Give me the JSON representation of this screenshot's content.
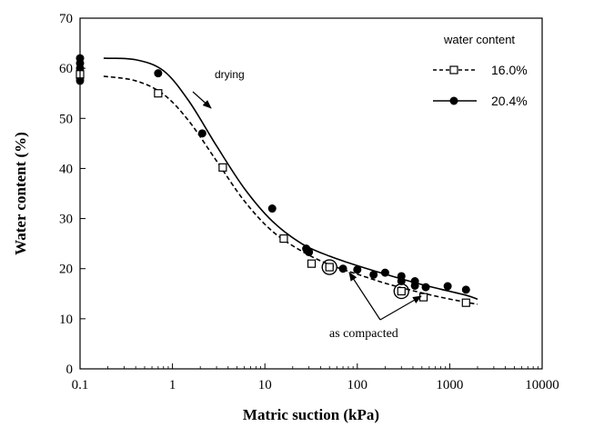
{
  "chart_data": {
    "type": "scatter",
    "xlabel": "Matric suction (kPa)",
    "ylabel": "Water content    (%)",
    "xscale": "log",
    "xlim": [
      0.1,
      10000
    ],
    "ylim": [
      0,
      70
    ],
    "xticks": [
      0.1,
      1,
      10,
      100,
      1000,
      10000
    ],
    "xtick_labels": [
      "0.1",
      "1",
      "10",
      "100",
      "1000",
      "10000"
    ],
    "yticks": [
      0,
      10,
      20,
      30,
      40,
      50,
      60,
      70
    ],
    "ytick_labels": [
      "0",
      "10",
      "20",
      "30",
      "40",
      "50",
      "60",
      "70"
    ],
    "grid": false,
    "legend": {
      "title": "water content",
      "placement": "top-right"
    },
    "series": [
      {
        "name": "16.0%",
        "marker": "open-square",
        "line": "dashed",
        "color": "#000000",
        "points": [
          [
            0.1,
            58.8
          ],
          [
            0.7,
            55
          ],
          [
            3.5,
            40.2
          ],
          [
            16,
            26
          ],
          [
            32,
            21
          ],
          [
            50,
            20.3
          ],
          [
            300,
            15.5
          ],
          [
            520,
            14.3
          ],
          [
            1500,
            13.2
          ]
        ],
        "curve": [
          [
            0.18,
            58.4
          ],
          [
            0.4,
            57.5
          ],
          [
            0.8,
            54.8
          ],
          [
            1.5,
            49.5
          ],
          [
            3,
            41.5
          ],
          [
            6,
            33.5
          ],
          [
            12,
            27.5
          ],
          [
            25,
            23.5
          ],
          [
            50,
            20.8
          ],
          [
            100,
            18.9
          ],
          [
            200,
            17.1
          ],
          [
            400,
            15.6
          ],
          [
            800,
            14.3
          ],
          [
            1500,
            13.3
          ],
          [
            2000,
            12.9
          ]
        ]
      },
      {
        "name": "20.4%",
        "marker": "filled-circle",
        "line": "solid",
        "color": "#000000",
        "points": [
          [
            0.1,
            62
          ],
          [
            0.1,
            61
          ],
          [
            0.1,
            60
          ],
          [
            0.1,
            58
          ],
          [
            0.1,
            57.5
          ],
          [
            0.7,
            59
          ],
          [
            2.1,
            47
          ],
          [
            12,
            32
          ],
          [
            28,
            24
          ],
          [
            30,
            23.3
          ],
          [
            50,
            20.3
          ],
          [
            70,
            20
          ],
          [
            100,
            19.8
          ],
          [
            150,
            18.8
          ],
          [
            200,
            19.2
          ],
          [
            300,
            18.5
          ],
          [
            300,
            17.5
          ],
          [
            420,
            17.5
          ],
          [
            420,
            16.6
          ],
          [
            550,
            16.3
          ],
          [
            950,
            16.5
          ],
          [
            1500,
            15.8
          ]
        ],
        "curve": [
          [
            0.18,
            62
          ],
          [
            0.4,
            61.7
          ],
          [
            0.8,
            59.5
          ],
          [
            1.5,
            53.5
          ],
          [
            3,
            44.5
          ],
          [
            6,
            36
          ],
          [
            12,
            29.5
          ],
          [
            25,
            25
          ],
          [
            50,
            22.5
          ],
          [
            100,
            20.6
          ],
          [
            200,
            18.9
          ],
          [
            400,
            17.3
          ],
          [
            800,
            15.9
          ],
          [
            1500,
            14.7
          ],
          [
            2000,
            13.9
          ]
        ]
      }
    ],
    "annotations": [
      {
        "text": "drying",
        "x": 2.2,
        "y": 66,
        "arrow_to": [
          2.6,
          59
        ]
      },
      {
        "text": "as compacted",
        "x": 100,
        "y": 6.5,
        "arrows_to": [
          [
            50,
            20.3
          ],
          [
            300,
            15.5
          ]
        ]
      }
    ],
    "highlighted_points": [
      [
        50,
        20.3
      ],
      [
        300,
        15.5
      ]
    ]
  }
}
